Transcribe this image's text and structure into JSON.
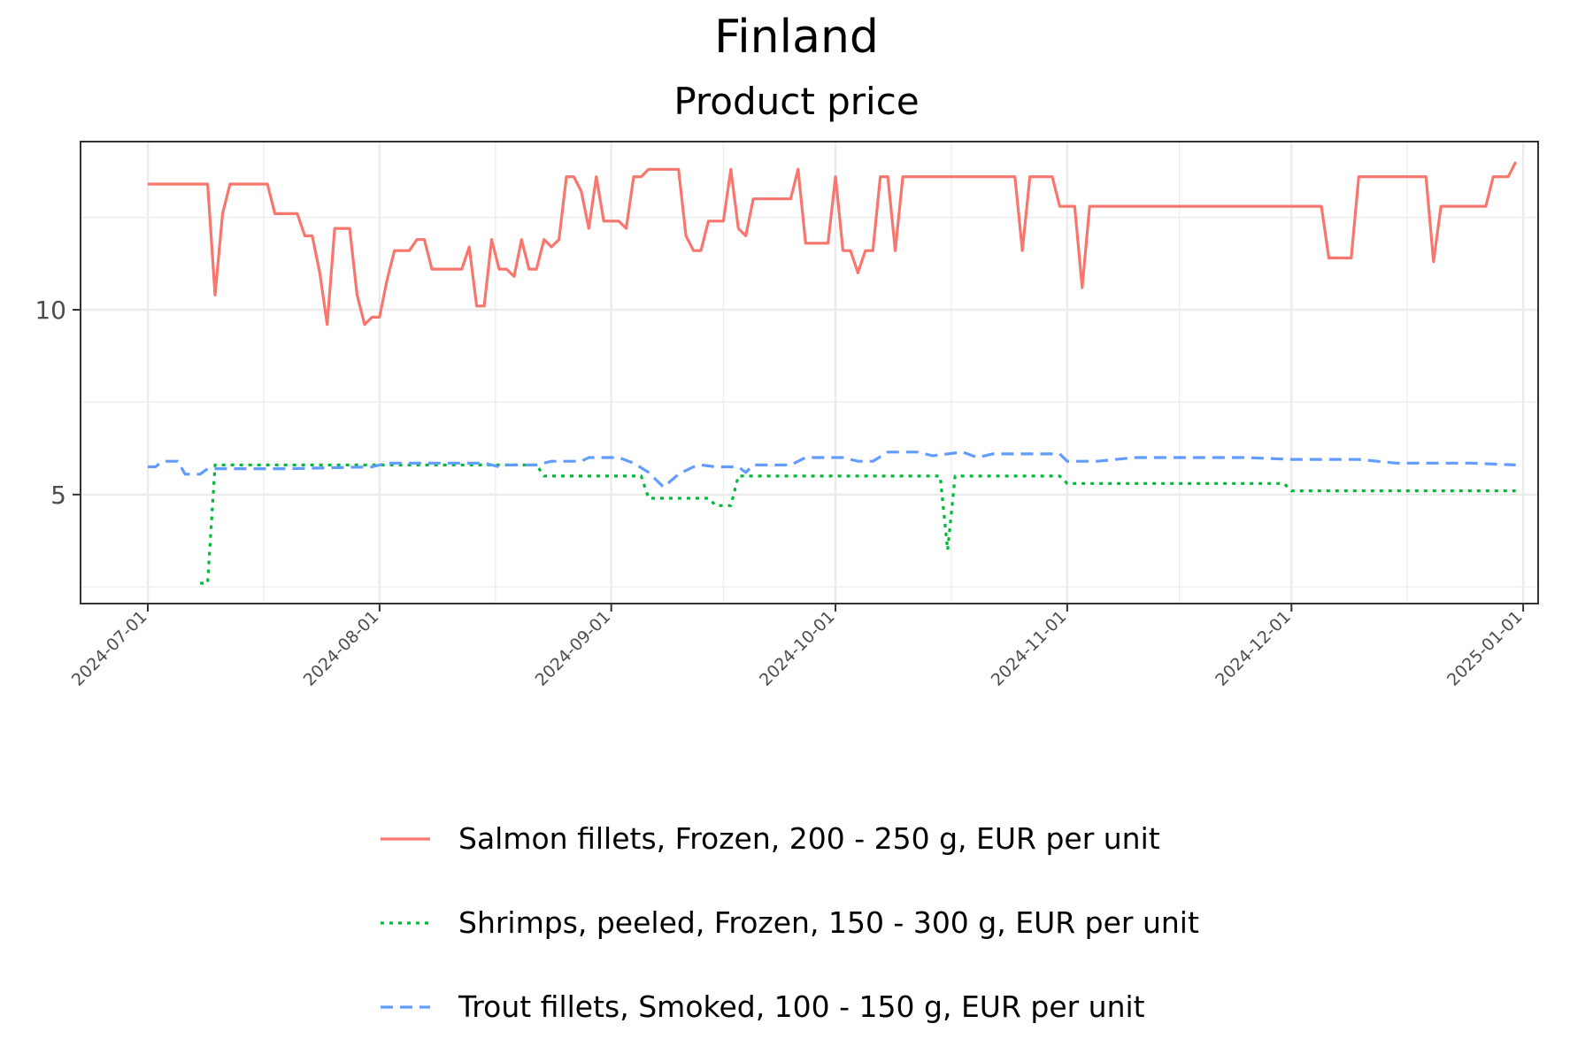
{
  "title": "Finland",
  "subtitle": "Product price",
  "chart_data": {
    "type": "line",
    "title": "Finland",
    "subtitle": "Product price",
    "xlabel": "",
    "ylabel": "",
    "x_range": [
      "2024-06-22",
      "2025-01-03"
    ],
    "ylim": [
      2.05,
      14.55
    ],
    "x_ticks": [
      "2024-07-01",
      "2024-08-01",
      "2024-09-01",
      "2024-10-01",
      "2024-11-01",
      "2024-12-01",
      "2025-01-01"
    ],
    "y_ticks": [
      5,
      10
    ],
    "grid": true,
    "legend_position": "bottom",
    "series": [
      {
        "name": "Salmon fillets, Frozen, 200 - 250 g, EUR per unit",
        "color": "#F8766D",
        "dash": "solid",
        "points": [
          [
            "2024-07-01",
            13.4
          ],
          [
            "2024-07-09",
            13.4
          ],
          [
            "2024-07-10",
            10.4
          ],
          [
            "2024-07-11",
            12.6
          ],
          [
            "2024-07-12",
            13.4
          ],
          [
            "2024-07-17",
            13.4
          ],
          [
            "2024-07-18",
            12.6
          ],
          [
            "2024-07-21",
            12.6
          ],
          [
            "2024-07-22",
            12.0
          ],
          [
            "2024-07-23",
            12.0
          ],
          [
            "2024-07-24",
            11.0
          ],
          [
            "2024-07-25",
            9.6
          ],
          [
            "2024-07-26",
            12.2
          ],
          [
            "2024-07-28",
            12.2
          ],
          [
            "2024-07-29",
            10.4
          ],
          [
            "2024-07-30",
            9.6
          ],
          [
            "2024-07-31",
            9.8
          ],
          [
            "2024-08-01",
            9.8
          ],
          [
            "2024-08-02",
            10.8
          ],
          [
            "2024-08-03",
            11.6
          ],
          [
            "2024-08-05",
            11.6
          ],
          [
            "2024-08-06",
            11.9
          ],
          [
            "2024-08-07",
            11.9
          ],
          [
            "2024-08-08",
            11.1
          ],
          [
            "2024-08-12",
            11.1
          ],
          [
            "2024-08-13",
            11.7
          ],
          [
            "2024-08-14",
            10.1
          ],
          [
            "2024-08-15",
            10.1
          ],
          [
            "2024-08-16",
            11.9
          ],
          [
            "2024-08-17",
            11.1
          ],
          [
            "2024-08-18",
            11.1
          ],
          [
            "2024-08-19",
            10.9
          ],
          [
            "2024-08-20",
            11.9
          ],
          [
            "2024-08-21",
            11.1
          ],
          [
            "2024-08-22",
            11.1
          ],
          [
            "2024-08-23",
            11.9
          ],
          [
            "2024-08-24",
            11.7
          ],
          [
            "2024-08-25",
            11.9
          ],
          [
            "2024-08-26",
            13.6
          ],
          [
            "2024-08-27",
            13.6
          ],
          [
            "2024-08-28",
            13.2
          ],
          [
            "2024-08-29",
            12.2
          ],
          [
            "2024-08-30",
            13.6
          ],
          [
            "2024-08-31",
            12.4
          ],
          [
            "2024-09-02",
            12.4
          ],
          [
            "2024-09-03",
            12.2
          ],
          [
            "2024-09-04",
            13.6
          ],
          [
            "2024-09-05",
            13.6
          ],
          [
            "2024-09-06",
            13.8
          ],
          [
            "2024-09-10",
            13.8
          ],
          [
            "2024-09-11",
            12.0
          ],
          [
            "2024-09-12",
            11.6
          ],
          [
            "2024-09-13",
            11.6
          ],
          [
            "2024-09-14",
            12.4
          ],
          [
            "2024-09-16",
            12.4
          ],
          [
            "2024-09-17",
            13.8
          ],
          [
            "2024-09-18",
            12.2
          ],
          [
            "2024-09-19",
            12.0
          ],
          [
            "2024-09-20",
            13.0
          ],
          [
            "2024-09-25",
            13.0
          ],
          [
            "2024-09-26",
            13.8
          ],
          [
            "2024-09-27",
            11.8
          ],
          [
            "2024-09-30",
            11.8
          ],
          [
            "2024-10-01",
            13.6
          ],
          [
            "2024-10-02",
            11.6
          ],
          [
            "2024-10-03",
            11.6
          ],
          [
            "2024-10-04",
            11.0
          ],
          [
            "2024-10-05",
            11.6
          ],
          [
            "2024-10-06",
            11.6
          ],
          [
            "2024-10-07",
            13.6
          ],
          [
            "2024-10-08",
            13.6
          ],
          [
            "2024-10-09",
            11.6
          ],
          [
            "2024-10-10",
            13.6
          ],
          [
            "2024-10-25",
            13.6
          ],
          [
            "2024-10-26",
            11.6
          ],
          [
            "2024-10-27",
            13.6
          ],
          [
            "2024-10-30",
            13.6
          ],
          [
            "2024-10-31",
            12.8
          ],
          [
            "2024-11-02",
            12.8
          ],
          [
            "2024-11-03",
            10.6
          ],
          [
            "2024-11-04",
            12.8
          ],
          [
            "2024-12-05",
            12.8
          ],
          [
            "2024-12-06",
            11.4
          ],
          [
            "2024-12-09",
            11.4
          ],
          [
            "2024-12-10",
            13.6
          ],
          [
            "2024-12-19",
            13.6
          ],
          [
            "2024-12-20",
            11.3
          ],
          [
            "2024-12-21",
            12.8
          ],
          [
            "2024-12-27",
            12.8
          ],
          [
            "2024-12-28",
            13.6
          ],
          [
            "2024-12-30",
            13.6
          ],
          [
            "2024-12-31",
            14.0
          ]
        ]
      },
      {
        "name": "Shrimps, peeled, Frozen, 150 - 300 g, EUR per unit",
        "color": "#00BA38",
        "dash": "dotted",
        "points": [
          [
            "2024-07-08",
            2.6
          ],
          [
            "2024-07-09",
            2.6
          ],
          [
            "2024-07-10",
            5.8
          ],
          [
            "2024-08-22",
            5.8
          ],
          [
            "2024-08-23",
            5.5
          ],
          [
            "2024-09-04",
            5.5
          ],
          [
            "2024-09-05",
            5.5
          ],
          [
            "2024-09-06",
            4.9
          ],
          [
            "2024-09-14",
            4.9
          ],
          [
            "2024-09-15",
            4.7
          ],
          [
            "2024-09-16",
            4.7
          ],
          [
            "2024-09-17",
            4.7
          ],
          [
            "2024-09-18",
            5.5
          ],
          [
            "2024-10-15",
            5.5
          ],
          [
            "2024-10-16",
            3.5
          ],
          [
            "2024-10-17",
            5.5
          ],
          [
            "2024-10-31",
            5.5
          ],
          [
            "2024-11-01",
            5.3
          ],
          [
            "2024-11-30",
            5.3
          ],
          [
            "2024-12-01",
            5.1
          ],
          [
            "2024-12-31",
            5.1
          ]
        ]
      },
      {
        "name": "Trout fillets, Smoked, 100 - 150 g, EUR per unit",
        "color": "#619CFF",
        "dash": "dashed",
        "points": [
          [
            "2024-07-01",
            5.75
          ],
          [
            "2024-07-02",
            5.75
          ],
          [
            "2024-07-03",
            5.9
          ],
          [
            "2024-07-05",
            5.9
          ],
          [
            "2024-07-06",
            5.55
          ],
          [
            "2024-07-08",
            5.55
          ],
          [
            "2024-07-09",
            5.7
          ],
          [
            "2024-07-20",
            5.7
          ],
          [
            "2024-07-31",
            5.75
          ],
          [
            "2024-08-02",
            5.85
          ],
          [
            "2024-08-15",
            5.85
          ],
          [
            "2024-08-17",
            5.75
          ],
          [
            "2024-08-18",
            5.8
          ],
          [
            "2024-08-22",
            5.8
          ],
          [
            "2024-08-24",
            5.9
          ],
          [
            "2024-08-28",
            5.9
          ],
          [
            "2024-08-29",
            6.0
          ],
          [
            "2024-09-02",
            6.0
          ],
          [
            "2024-09-04",
            5.85
          ],
          [
            "2024-09-06",
            5.6
          ],
          [
            "2024-09-08",
            5.2
          ],
          [
            "2024-09-10",
            5.55
          ],
          [
            "2024-09-12",
            5.75
          ],
          [
            "2024-09-13",
            5.8
          ],
          [
            "2024-09-15",
            5.75
          ],
          [
            "2024-09-18",
            5.75
          ],
          [
            "2024-09-19",
            5.6
          ],
          [
            "2024-09-20",
            5.8
          ],
          [
            "2024-09-25",
            5.8
          ],
          [
            "2024-09-27",
            6.0
          ],
          [
            "2024-10-02",
            6.0
          ],
          [
            "2024-10-04",
            5.9
          ],
          [
            "2024-10-06",
            5.9
          ],
          [
            "2024-10-08",
            6.15
          ],
          [
            "2024-10-12",
            6.15
          ],
          [
            "2024-10-14",
            6.05
          ],
          [
            "2024-10-16",
            6.1
          ],
          [
            "2024-10-18",
            6.15
          ],
          [
            "2024-10-20",
            6.0
          ],
          [
            "2024-10-22",
            6.1
          ],
          [
            "2024-10-31",
            6.1
          ],
          [
            "2024-11-01",
            5.9
          ],
          [
            "2024-11-05",
            5.9
          ],
          [
            "2024-11-10",
            6.0
          ],
          [
            "2024-11-20",
            6.0
          ],
          [
            "2024-11-25",
            6.0
          ],
          [
            "2024-12-01",
            5.95
          ],
          [
            "2024-12-10",
            5.95
          ],
          [
            "2024-12-15",
            5.85
          ],
          [
            "2024-12-20",
            5.85
          ],
          [
            "2024-12-25",
            5.85
          ],
          [
            "2024-12-31",
            5.8
          ]
        ]
      }
    ]
  }
}
